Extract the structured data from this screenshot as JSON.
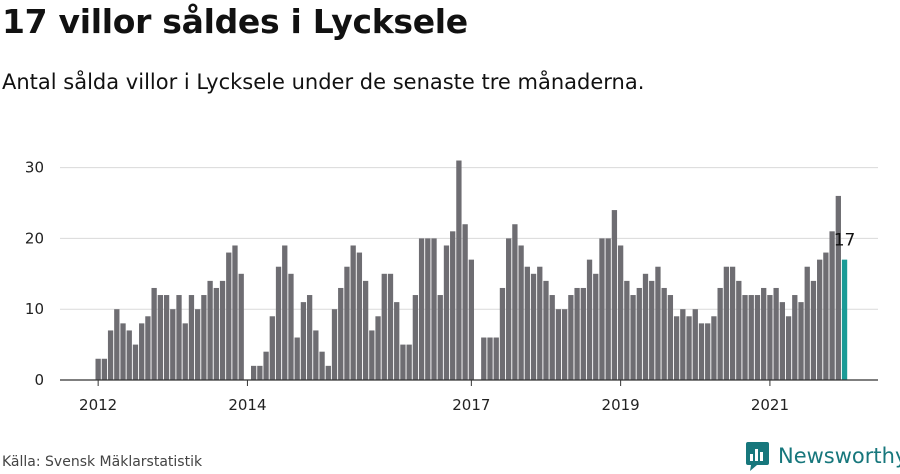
{
  "title": "17 villor såldes i Lycksele",
  "subtitle": "Antal sålda villor i Lycksele under de senaste tre månaderna.",
  "source": "Källa: Svensk Mäklarstatistik",
  "brand": {
    "name": "Newsworthy",
    "icon": "newsworthy-logo-icon",
    "color": "#17777c"
  },
  "chart_data": {
    "type": "bar",
    "title": "",
    "xlabel": "",
    "ylabel": "",
    "ylim": [
      0,
      31
    ],
    "yticks": [
      0,
      10,
      20,
      30
    ],
    "xtick_labels": [
      "2012",
      "2014",
      "2017",
      "2019",
      "2021"
    ],
    "grid": true,
    "bar_color": "#6e6d72",
    "highlight_color": "#1a9b96",
    "highlight_label": "17",
    "start": "2012-01",
    "values": [
      3,
      3,
      7,
      10,
      8,
      7,
      5,
      8,
      9,
      13,
      12,
      12,
      10,
      12,
      8,
      12,
      10,
      12,
      14,
      13,
      14,
      18,
      19,
      15,
      0,
      2,
      2,
      4,
      9,
      16,
      19,
      15,
      6,
      11,
      12,
      7,
      4,
      2,
      10,
      13,
      16,
      19,
      18,
      14,
      7,
      9,
      15,
      15,
      11,
      5,
      5,
      12,
      20,
      20,
      20,
      12,
      19,
      21,
      31,
      22,
      17,
      0,
      6,
      6,
      6,
      13,
      20,
      22,
      19,
      16,
      15,
      16,
      14,
      12,
      10,
      10,
      12,
      13,
      13,
      17,
      15,
      20,
      20,
      24,
      19,
      14,
      12,
      13,
      15,
      14,
      16,
      13,
      12,
      9,
      10,
      9,
      10,
      8,
      8,
      9,
      13,
      16,
      16,
      14,
      12,
      12,
      12,
      13,
      12,
      13,
      11,
      9,
      12,
      11,
      16,
      14,
      17,
      18,
      21,
      26,
      17
    ]
  }
}
